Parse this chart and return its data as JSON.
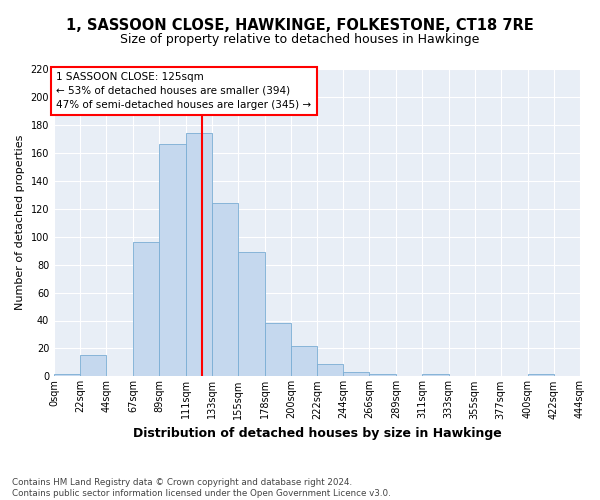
{
  "title": "1, SASSOON CLOSE, HAWKINGE, FOLKESTONE, CT18 7RE",
  "subtitle": "Size of property relative to detached houses in Hawkinge",
  "xlabel": "Distribution of detached houses by size in Hawkinge",
  "ylabel": "Number of detached properties",
  "bar_color": "#c5d8ee",
  "bar_edge_color": "#7aadd4",
  "plot_bg_color": "#e8eef6",
  "fig_bg_color": "#ffffff",
  "grid_color": "#ffffff",
  "red_line_x": 125,
  "annotation_line1": "1 SASSOON CLOSE: 125sqm",
  "annotation_line2": "← 53% of detached houses are smaller (394)",
  "annotation_line3": "47% of semi-detached houses are larger (345) →",
  "footer_line1": "Contains HM Land Registry data © Crown copyright and database right 2024.",
  "footer_line2": "Contains public sector information licensed under the Open Government Licence v3.0.",
  "bin_edges": [
    0,
    22,
    44,
    67,
    89,
    111,
    133,
    155,
    178,
    200,
    222,
    244,
    266,
    289,
    311,
    333,
    355,
    377,
    400,
    422,
    444
  ],
  "bar_heights": [
    2,
    15,
    0,
    96,
    166,
    174,
    124,
    89,
    38,
    22,
    9,
    3,
    2,
    0,
    2,
    0,
    0,
    0,
    2,
    0
  ],
  "ylim_max": 220,
  "yticks": [
    0,
    20,
    40,
    60,
    80,
    100,
    120,
    140,
    160,
    180,
    200,
    220
  ],
  "title_fontsize": 10.5,
  "subtitle_fontsize": 9,
  "tick_fontsize": 7,
  "ylabel_fontsize": 8,
  "xlabel_fontsize": 9
}
